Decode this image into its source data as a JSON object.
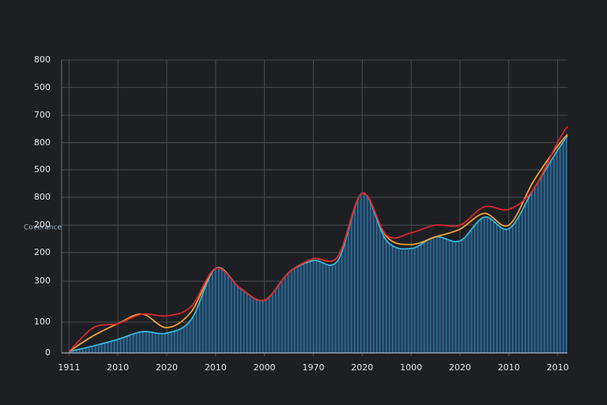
{
  "chart_data": {
    "type": "line",
    "y_label": "Coverance",
    "x": [
      0,
      0.5,
      1,
      1.5,
      2,
      2.5,
      3,
      3.5,
      4,
      4.5,
      5,
      5.5,
      6,
      6.5,
      7,
      7.5,
      8,
      8.5,
      9,
      9.5,
      10,
      10.2
    ],
    "series": [
      {
        "name": "cyan",
        "color": "#35b6dc",
        "fill": "#1f4766",
        "values": [
          4,
          19,
          37,
          58,
          54,
          91,
          231,
          177,
          144,
          220,
          252,
          252,
          436,
          306,
          285,
          317,
          306,
          371,
          339,
          446,
          554,
          593
        ]
      },
      {
        "name": "orange",
        "color": "#f0a030",
        "values": [
          4,
          47,
          80,
          106,
          69,
          112,
          231,
          177,
          144,
          220,
          257,
          263,
          436,
          317,
          296,
          317,
          338,
          381,
          349,
          468,
          565,
          597
        ]
      },
      {
        "name": "red",
        "color": "#d8262c",
        "values": [
          4,
          69,
          80,
          106,
          101,
          127,
          231,
          177,
          144,
          220,
          257,
          263,
          436,
          321,
          328,
          349,
          349,
          399,
          392,
          446,
          576,
          619
        ]
      }
    ],
    "xlim": [
      -0.07,
      10.2
    ],
    "xticks": [
      {
        "value": 0,
        "label": "1911"
      },
      {
        "value": 1,
        "label": "2010"
      },
      {
        "value": 2,
        "label": "2020"
      },
      {
        "value": 3,
        "label": "2010"
      },
      {
        "value": 4,
        "label": "2000"
      },
      {
        "value": 5,
        "label": "1970"
      },
      {
        "value": 6,
        "label": "2020"
      },
      {
        "value": 7,
        "label": "1000"
      },
      {
        "value": 8,
        "label": "2020"
      },
      {
        "value": 9,
        "label": "2010"
      },
      {
        "value": 10,
        "label": "2010"
      }
    ],
    "ylim": [
      0,
      800
    ],
    "yticks": [
      0,
      {
        "value": 84,
        "label": "100"
      },
      {
        "value": 196,
        "label": "300"
      },
      {
        "value": 274,
        "label": "200"
      },
      {
        "value": 349,
        "label": "200"
      },
      {
        "value": 425,
        "label": "800"
      },
      {
        "value": 500,
        "label": "500"
      },
      {
        "value": 574,
        "label": "800"
      },
      {
        "value": 649,
        "label": "700"
      },
      {
        "value": 725,
        "label": "500"
      },
      800
    ],
    "grid": true
  }
}
